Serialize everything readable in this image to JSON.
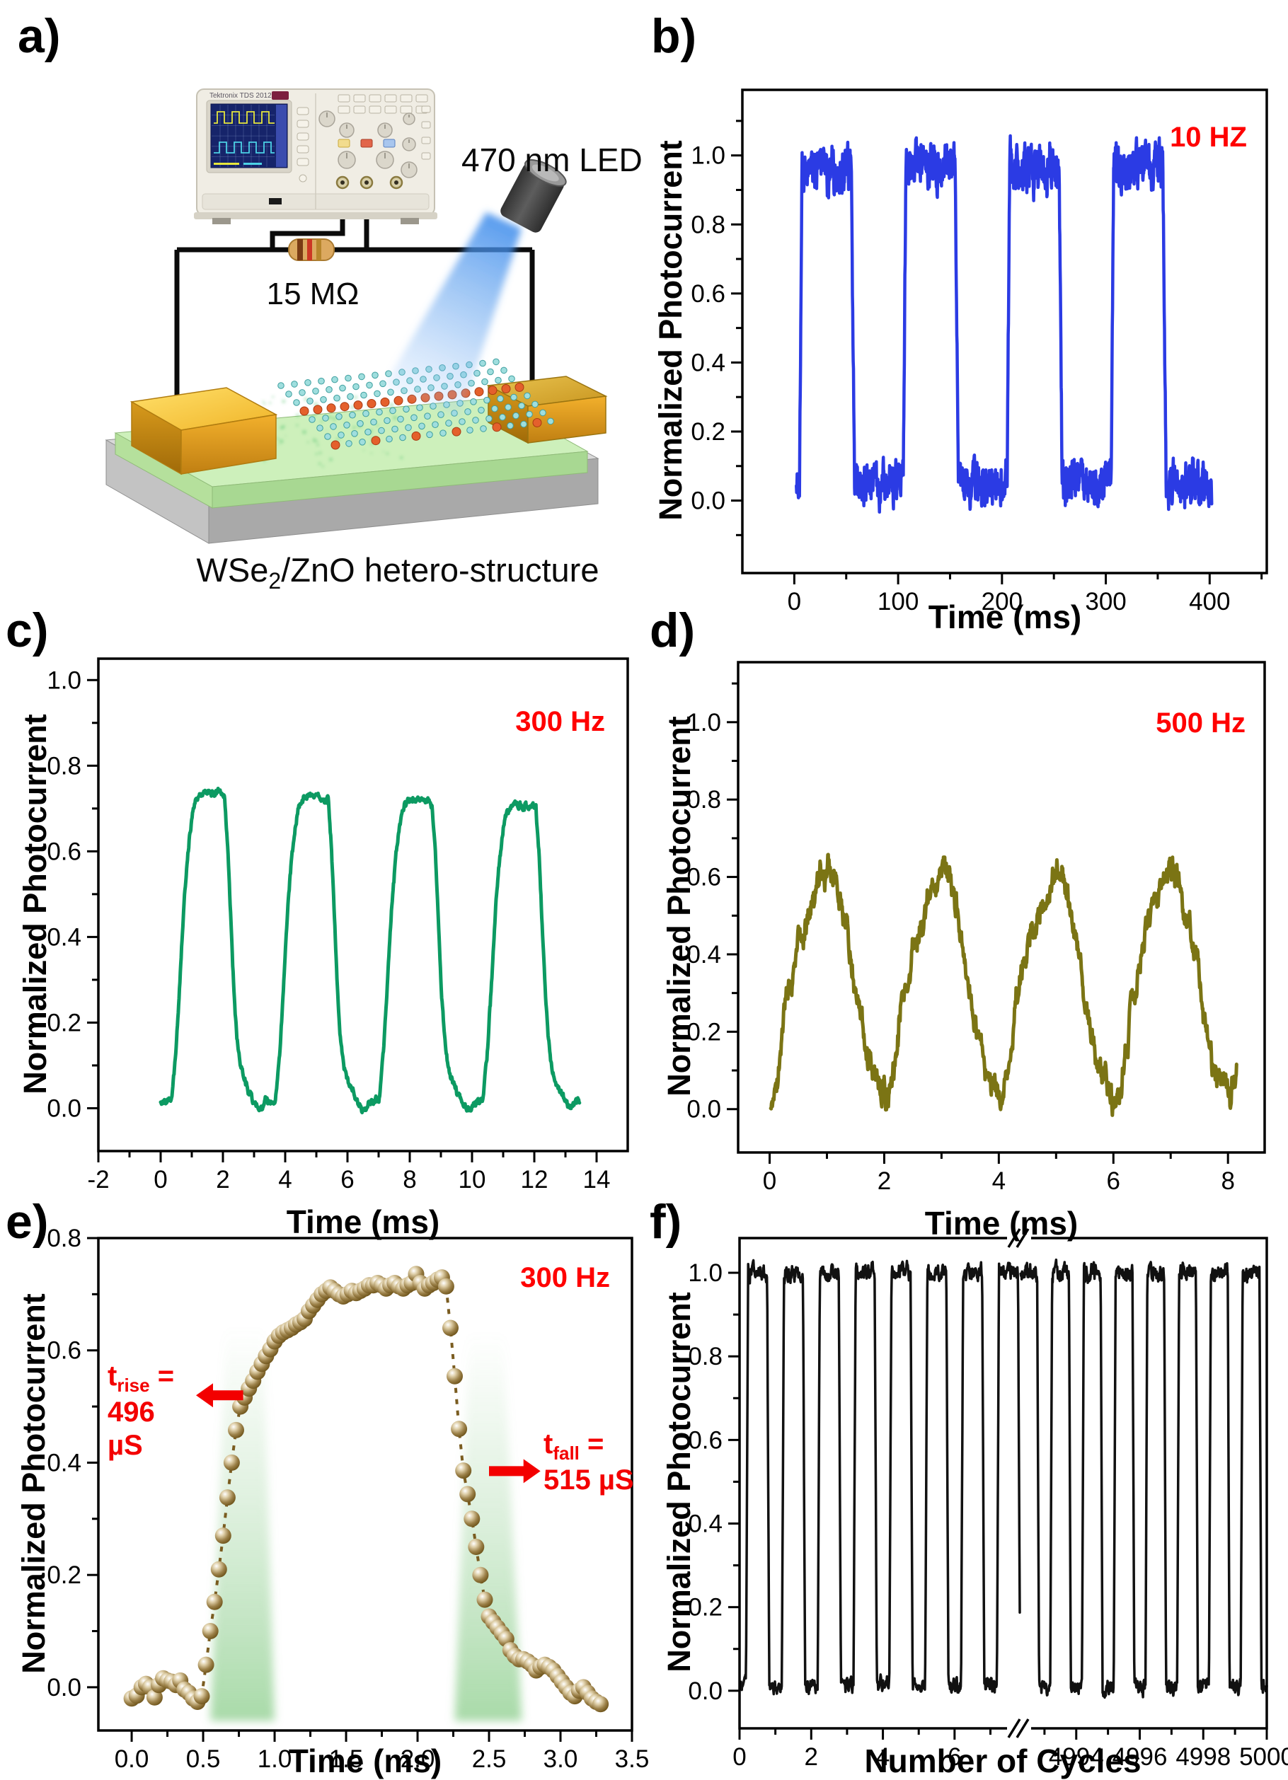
{
  "panels": {
    "a": {
      "label": "a)",
      "led_label": "470 nm LED",
      "resistor_label": "15 MΩ",
      "scope_brand": "Tektronix TDS 2012C",
      "caption": {
        "base": "WSe",
        "sub": "2",
        "rest": "/ZnO hetero-structure"
      }
    },
    "b": {
      "label": "b)",
      "ylabel": "Normalized Photocurrent",
      "xlabel": "Time (ms)"
    },
    "c": {
      "label": "c)",
      "ylabel": "Normalized Photocurrent",
      "xlabel": "Time (ms)"
    },
    "d": {
      "label": "d)",
      "ylabel": "Normalized Photocurrent",
      "xlabel": "Time (ms)"
    },
    "e": {
      "label": "e)",
      "ylabel": "Normalized Photocurrent",
      "xlabel": "Time (ms)"
    },
    "f": {
      "label": "f)",
      "ylabel": "Normalized Photocurrent",
      "xlabel": "Number of Cycles"
    }
  },
  "annotations": {
    "t_rise": {
      "base": "t",
      "sub": "rise",
      "eq": " = ",
      "line2": "496",
      "line3": "µS"
    },
    "t_fall": {
      "base": "t",
      "sub": "fall",
      "eq": " = ",
      "line2": "515 µS"
    }
  },
  "chart_data": {
    "b": {
      "type": "line",
      "legend": "10 HZ",
      "legend_color": "#ff0000",
      "color": "#2b3be4",
      "xlabel": "Time (ms)",
      "ylabel": "Normalized Photocurrent",
      "x_range": [
        -50,
        455
      ],
      "y_range": [
        -0.21,
        1.19
      ],
      "x_ticks": {
        "values": [
          0,
          100,
          200,
          300,
          400
        ],
        "labels": [
          "0",
          "100",
          "200",
          "300",
          "400"
        ],
        "minor": [
          50,
          150,
          250,
          350,
          450
        ]
      },
      "y_ticks": {
        "values": [
          0,
          0.2,
          0.4,
          0.6,
          0.8,
          1.0
        ],
        "labels": [
          "0.0",
          "0.2",
          "0.4",
          "0.6",
          "0.8",
          "1.0"
        ],
        "minor": [
          -0.1,
          0.1,
          0.3,
          0.5,
          0.7,
          0.9,
          1.1
        ]
      },
      "waveform": {
        "kind": "square",
        "seed": 21,
        "points": 1600,
        "t_start": 2,
        "t_end": 402,
        "period": 100,
        "rise_at": 5,
        "rise_len": 2.5,
        "on_len": 50,
        "fall_len": 3,
        "high": 0.965,
        "low": 0.05,
        "noise_high": 0.062,
        "noise_low": 0.058,
        "wander": 0.05
      }
    },
    "c": {
      "type": "line",
      "legend": "300 Hz",
      "legend_color": "#ff0000",
      "color": "#0c9a62",
      "xlabel": "Time (ms)",
      "ylabel": "Normalized Photocurrent",
      "x_range": [
        -2,
        15
      ],
      "y_range": [
        -0.1,
        1.05
      ],
      "x_ticks": {
        "values": [
          -2,
          0,
          2,
          4,
          6,
          8,
          10,
          12,
          14
        ],
        "labels": [
          "-2",
          "0",
          "2",
          "4",
          "6",
          "8",
          "10",
          "12",
          "14"
        ],
        "minor": [
          -1,
          1,
          3,
          5,
          7,
          9,
          11,
          13
        ]
      },
      "y_ticks": {
        "values": [
          0,
          0.2,
          0.4,
          0.6,
          0.8,
          1.0
        ],
        "labels": [
          "0.0",
          "0.2",
          "0.4",
          "0.6",
          "0.8",
          "1.0"
        ],
        "minor": [
          0.1,
          0.3,
          0.5,
          0.7,
          0.9
        ]
      },
      "waveform": {
        "kind": "envelope",
        "seed": 5,
        "points": 1000,
        "t_start": 0,
        "t_end": 13.45,
        "period": 3.3333,
        "cycle_drop": 0.013,
        "drop_threshold": 0.25,
        "slow": 0.012,
        "fast": 0.009,
        "keys": [
          [
            0,
            0.01
          ],
          [
            0.35,
            0.02
          ],
          [
            0.5,
            0.14
          ],
          [
            0.62,
            0.3
          ],
          [
            0.75,
            0.48
          ],
          [
            0.88,
            0.6
          ],
          [
            1.0,
            0.68
          ],
          [
            1.1,
            0.715
          ],
          [
            1.25,
            0.735
          ],
          [
            1.45,
            0.74
          ],
          [
            1.7,
            0.735
          ],
          [
            1.9,
            0.74
          ],
          [
            2.05,
            0.73
          ],
          [
            2.15,
            0.62
          ],
          [
            2.25,
            0.45
          ],
          [
            2.35,
            0.28
          ],
          [
            2.45,
            0.16
          ],
          [
            2.55,
            0.1
          ],
          [
            2.7,
            0.065
          ],
          [
            2.85,
            0.04
          ],
          [
            3.0,
            0.015
          ],
          [
            3.15,
            -0.005
          ],
          [
            3.3333,
            0.005
          ]
        ]
      }
    },
    "d": {
      "type": "line",
      "legend": "500 Hz",
      "legend_color": "#ff0000",
      "color": "#7b7414",
      "xlabel": "Time (ms)",
      "ylabel": "Normalized Photocurrent",
      "x_range": [
        -0.55,
        8.64
      ],
      "y_range": [
        -0.112,
        1.155
      ],
      "x_ticks": {
        "values": [
          0,
          2,
          4,
          6,
          8
        ],
        "labels": [
          "0",
          "2",
          "4",
          "6",
          "8"
        ],
        "minor": [
          1,
          3,
          5,
          7
        ]
      },
      "y_ticks": {
        "values": [
          0,
          0.2,
          0.4,
          0.6,
          0.8,
          1.0
        ],
        "labels": [
          "0.0",
          "0.2",
          "0.4",
          "0.6",
          "0.8",
          "1.0"
        ],
        "minor": [
          0.1,
          0.3,
          0.5,
          0.7,
          0.9,
          1.1
        ]
      },
      "waveform": {
        "kind": "envelope",
        "seed": 9,
        "points": 1200,
        "t_start": 0.02,
        "t_end": 8.15,
        "period": 2,
        "cycle_drop": 0,
        "drop_threshold": 1,
        "slow": 0.058,
        "fast": 0.03,
        "keys": [
          [
            0,
            0.0
          ],
          [
            0.12,
            0.08
          ],
          [
            0.3,
            0.28
          ],
          [
            0.5,
            0.43
          ],
          [
            0.7,
            0.52
          ],
          [
            0.85,
            0.58
          ],
          [
            1.0,
            0.62
          ],
          [
            1.12,
            0.6
          ],
          [
            1.25,
            0.5
          ],
          [
            1.4,
            0.38
          ],
          [
            1.55,
            0.24
          ],
          [
            1.7,
            0.13
          ],
          [
            1.85,
            0.08
          ],
          [
            1.95,
            0.04
          ],
          [
            2,
            0.02
          ]
        ]
      }
    },
    "e": {
      "type": "scatter",
      "legend": "300 Hz",
      "legend_color": "#ff0000",
      "color": "#6a4f16",
      "xlabel": "Time (ms)",
      "ylabel": "Normalized Photocurrent",
      "x_range": [
        -0.233,
        3.5
      ],
      "y_range": [
        -0.077,
        0.8
      ],
      "x_ticks": {
        "values": [
          0,
          0.5,
          1.0,
          1.5,
          2.0,
          2.5,
          3.0,
          3.5
        ],
        "labels": [
          "0.0",
          "0.5",
          "1.0",
          "1.5",
          "2.0",
          "2.5",
          "3.0",
          "3.5"
        ],
        "minor": [
          0.25,
          0.75,
          1.25,
          1.75,
          2.25,
          2.75,
          3.25
        ]
      },
      "y_ticks": {
        "values": [
          0,
          0.2,
          0.4,
          0.6,
          0.8
        ],
        "labels": [
          "0.0",
          "0.2",
          "0.4",
          "0.6",
          "0.8"
        ],
        "minor": [
          0.1,
          0.3,
          0.5,
          0.7
        ]
      },
      "rise_time_us": 496,
      "fall_time_us": 515,
      "bands": [
        {
          "x0b": 0.55,
          "x1b": 1.0,
          "x0t": 0.66,
          "x1t": 0.92,
          "top": 0.64,
          "bottom": -0.06
        },
        {
          "x0b": 2.26,
          "x1b": 2.73,
          "x0t": 2.36,
          "x1t": 2.6,
          "top": 0.63,
          "bottom": -0.06
        }
      ],
      "arrows": [
        {
          "dir": "left",
          "tip_x": 0.45,
          "tail_x": 0.78,
          "y": 0.52
        },
        {
          "dir": "right",
          "tip_x": 2.86,
          "tail_x": 2.5,
          "y": 0.385
        }
      ],
      "points": [
        [
          0.0,
          -0.02
        ],
        [
          0.035,
          -0.015
        ],
        [
          0.07,
          0.0
        ],
        [
          0.1,
          0.006
        ],
        [
          0.13,
          0.0
        ],
        [
          0.16,
          -0.018
        ],
        [
          0.19,
          0.004
        ],
        [
          0.22,
          0.016
        ],
        [
          0.25,
          0.012
        ],
        [
          0.28,
          0.01
        ],
        [
          0.31,
          0.004
        ],
        [
          0.34,
          0.012
        ],
        [
          0.37,
          -0.004
        ],
        [
          0.4,
          -0.01
        ],
        [
          0.43,
          -0.02
        ],
        [
          0.46,
          -0.026
        ],
        [
          0.49,
          -0.016
        ],
        [
          0.52,
          0.04
        ],
        [
          0.55,
          0.1
        ],
        [
          0.58,
          0.152
        ],
        [
          0.61,
          0.21
        ],
        [
          0.64,
          0.27
        ],
        [
          0.67,
          0.338
        ],
        [
          0.7,
          0.4
        ],
        [
          0.73,
          0.458
        ],
        [
          0.76,
          0.5
        ],
        [
          0.79,
          0.516
        ],
        [
          0.82,
          0.532
        ],
        [
          0.85,
          0.546
        ],
        [
          0.88,
          0.562
        ],
        [
          0.91,
          0.576
        ],
        [
          0.94,
          0.59
        ],
        [
          0.97,
          0.602
        ],
        [
          1.0,
          0.616
        ],
        [
          1.03,
          0.626
        ],
        [
          1.06,
          0.632
        ],
        [
          1.09,
          0.636
        ],
        [
          1.12,
          0.64
        ],
        [
          1.15,
          0.646
        ],
        [
          1.18,
          0.65
        ],
        [
          1.21,
          0.656
        ],
        [
          1.24,
          0.67
        ],
        [
          1.27,
          0.68
        ],
        [
          1.3,
          0.69
        ],
        [
          1.33,
          0.7
        ],
        [
          1.36,
          0.706
        ],
        [
          1.39,
          0.712
        ],
        [
          1.42,
          0.706
        ],
        [
          1.45,
          0.7
        ],
        [
          1.48,
          0.696
        ],
        [
          1.51,
          0.7
        ],
        [
          1.54,
          0.706
        ],
        [
          1.57,
          0.702
        ],
        [
          1.6,
          0.706
        ],
        [
          1.63,
          0.71
        ],
        [
          1.66,
          0.716
        ],
        [
          1.69,
          0.716
        ],
        [
          1.72,
          0.72
        ],
        [
          1.75,
          0.716
        ],
        [
          1.78,
          0.71
        ],
        [
          1.81,
          0.716
        ],
        [
          1.84,
          0.72
        ],
        [
          1.87,
          0.714
        ],
        [
          1.9,
          0.71
        ],
        [
          1.93,
          0.716
        ],
        [
          1.96,
          0.72
        ],
        [
          1.99,
          0.736
        ],
        [
          2.02,
          0.72
        ],
        [
          2.05,
          0.71
        ],
        [
          2.08,
          0.716
        ],
        [
          2.11,
          0.72
        ],
        [
          2.14,
          0.726
        ],
        [
          2.17,
          0.73
        ],
        [
          2.2,
          0.714
        ],
        [
          2.23,
          0.64
        ],
        [
          2.26,
          0.554
        ],
        [
          2.29,
          0.46
        ],
        [
          2.32,
          0.386
        ],
        [
          2.35,
          0.344
        ],
        [
          2.38,
          0.3
        ],
        [
          2.41,
          0.25
        ],
        [
          2.44,
          0.2
        ],
        [
          2.47,
          0.156
        ],
        [
          2.5,
          0.126
        ],
        [
          2.53,
          0.116
        ],
        [
          2.56,
          0.106
        ],
        [
          2.59,
          0.096
        ],
        [
          2.62,
          0.086
        ],
        [
          2.65,
          0.066
        ],
        [
          2.68,
          0.056
        ],
        [
          2.71,
          0.05
        ],
        [
          2.74,
          0.05
        ],
        [
          2.77,
          0.046
        ],
        [
          2.8,
          0.04
        ],
        [
          2.83,
          0.03
        ],
        [
          2.86,
          0.036
        ],
        [
          2.89,
          0.04
        ],
        [
          2.92,
          0.036
        ],
        [
          2.95,
          0.03
        ],
        [
          2.98,
          0.02
        ],
        [
          3.01,
          0.01
        ],
        [
          3.04,
          0.0
        ],
        [
          3.07,
          -0.01
        ],
        [
          3.1,
          -0.016
        ],
        [
          3.13,
          -0.006
        ],
        [
          3.16,
          0.0
        ],
        [
          3.19,
          -0.01
        ],
        [
          3.22,
          -0.02
        ],
        [
          3.25,
          -0.026
        ],
        [
          3.28,
          -0.03
        ]
      ]
    },
    "f": {
      "type": "line",
      "legend": "",
      "color": "#111111",
      "xlabel": "Number of Cycles",
      "ylabel": "Normalized Photocurrent",
      "y_range": [
        -0.09,
        1.083
      ],
      "x_break": {
        "left_range": [
          0,
          7.8
        ],
        "right_range": [
          4992.2,
          5000
        ],
        "threshold": 1000
      },
      "x_ticks": {
        "values": [
          0,
          2,
          4,
          6,
          4994,
          4996,
          4998,
          5000
        ],
        "labels": [
          "0",
          "2",
          "4",
          "6",
          "4994",
          "4996",
          "4998",
          "5000"
        ],
        "minor": [
          1,
          3,
          5,
          7,
          4993,
          4995,
          4997,
          4999
        ]
      },
      "y_ticks": {
        "values": [
          0,
          0.2,
          0.4,
          0.6,
          0.8,
          1.0
        ],
        "labels": [
          "0.0",
          "0.2",
          "0.4",
          "0.6",
          "0.8",
          "1.0"
        ],
        "minor": [
          0.1,
          0.3,
          0.5,
          0.7,
          0.9
        ]
      },
      "waveform": {
        "kind": "square",
        "points": 700,
        "period": 1,
        "rise_at": 0.18,
        "rise_len": 0.06,
        "on_len": 0.59,
        "fall_len": 0.06,
        "high": 1.0,
        "low": 0.012,
        "noise_high": 0.02,
        "noise_low": 0.018,
        "wander": 0.012
      },
      "segments": [
        {
          "t_start": 0.03,
          "t_end": 7.82,
          "seed": 31
        },
        {
          "t_start": 4992.25,
          "t_end": 5000,
          "seed": 32
        }
      ]
    }
  }
}
